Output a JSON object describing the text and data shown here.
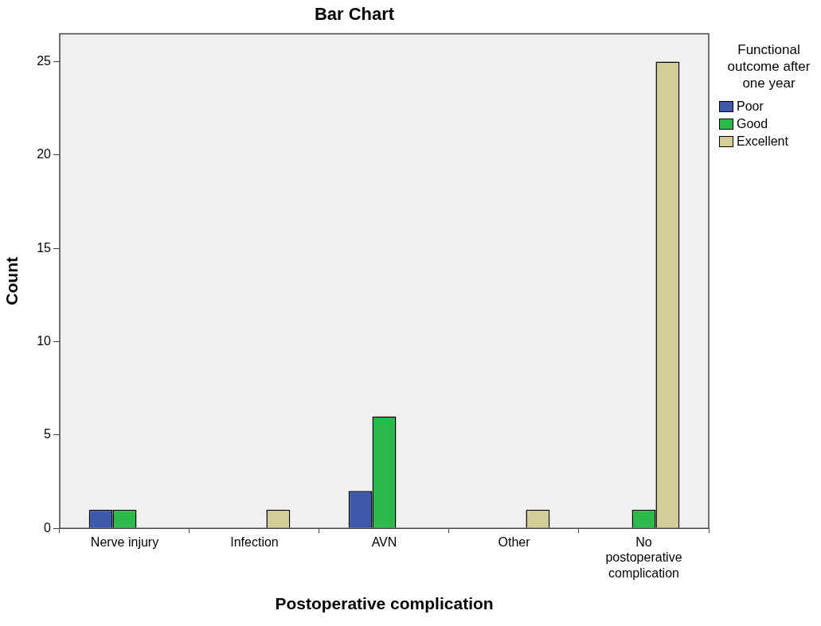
{
  "chart_data": {
    "type": "bar",
    "title": "Bar Chart",
    "xlabel": "Postoperative complication",
    "ylabel": "Count",
    "legend_title": "Functional outcome after one year",
    "categories": [
      "Nerve injury",
      "Infection",
      "AVN",
      "Other",
      "No postoperative complication"
    ],
    "series": [
      {
        "name": "Poor",
        "color": "#3e58ac",
        "values": [
          1,
          0,
          2,
          0,
          0
        ]
      },
      {
        "name": "Good",
        "color": "#2db84b",
        "values": [
          1,
          0,
          6,
          0,
          1
        ]
      },
      {
        "name": "Excellent",
        "color": "#d3ce97",
        "values": [
          0,
          1,
          0,
          1,
          25
        ]
      }
    ],
    "ylim": [
      0,
      26.5
    ],
    "yticks": [
      0,
      5,
      10,
      15,
      20,
      25
    ],
    "grid": false,
    "legend": "right"
  }
}
